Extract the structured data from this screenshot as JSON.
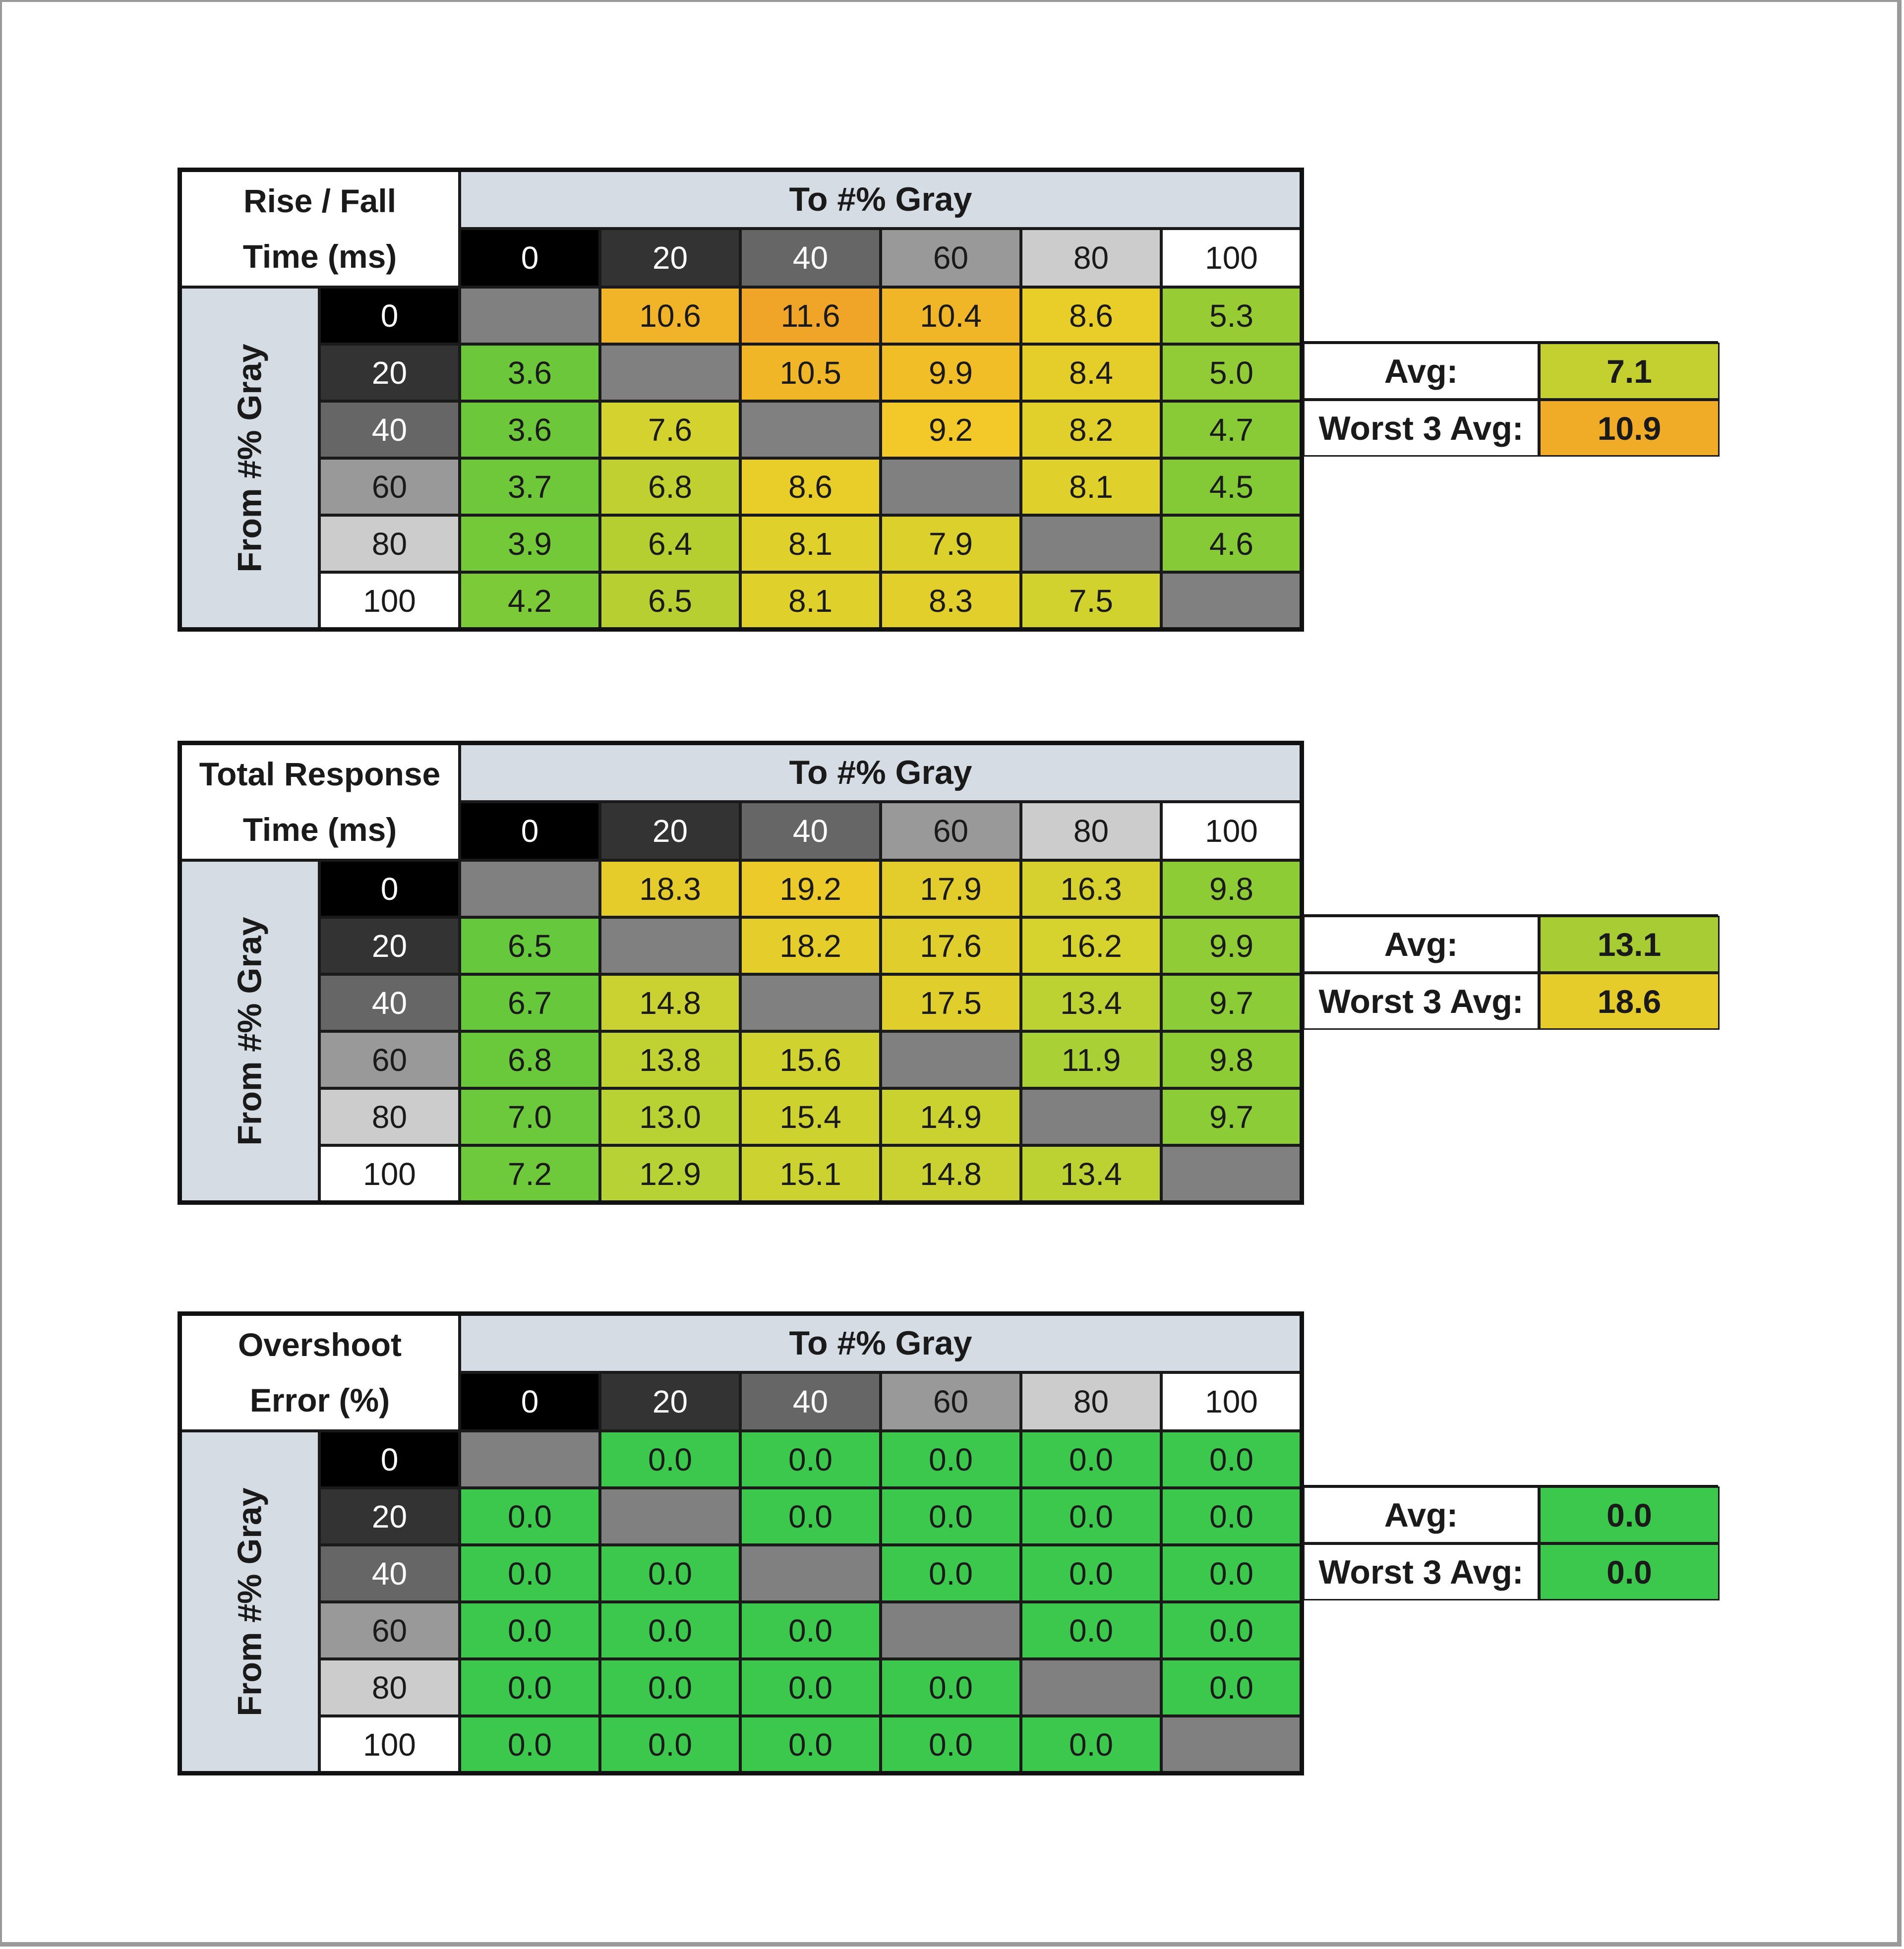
{
  "chart_data": [
    {
      "type": "heatmap",
      "title_lines": [
        "Rise / Fall",
        "Time (ms)"
      ],
      "column_header": "To #% Gray",
      "row_header": "From #% Gray",
      "columns": [
        "0",
        "20",
        "40",
        "60",
        "80",
        "100"
      ],
      "rows": [
        "0",
        "20",
        "40",
        "60",
        "80",
        "100"
      ],
      "values": [
        [
          null,
          10.6,
          11.6,
          10.4,
          8.6,
          5.3
        ],
        [
          3.6,
          null,
          10.5,
          9.9,
          8.4,
          5.0
        ],
        [
          3.6,
          7.6,
          null,
          9.2,
          8.2,
          4.7
        ],
        [
          3.7,
          6.8,
          8.6,
          null,
          8.1,
          4.5
        ],
        [
          3.9,
          6.4,
          8.1,
          7.9,
          null,
          4.6
        ],
        [
          4.2,
          6.5,
          8.1,
          8.3,
          7.5,
          null
        ]
      ],
      "display": [
        [
          "",
          "10.6",
          "11.6",
          "10.4",
          "8.6",
          "5.3"
        ],
        [
          "3.6",
          "",
          "10.5",
          "9.9",
          "8.4",
          "5.0"
        ],
        [
          "3.6",
          "7.6",
          "",
          "9.2",
          "8.2",
          "4.7"
        ],
        [
          "3.7",
          "6.8",
          "8.6",
          "",
          "8.1",
          "4.5"
        ],
        [
          "3.9",
          "6.4",
          "8.1",
          "7.9",
          "",
          "4.6"
        ],
        [
          "4.2",
          "6.5",
          "8.1",
          "8.3",
          "7.5",
          ""
        ]
      ],
      "color_scale": [
        [
          3.6,
          "#6cc83a"
        ],
        [
          7.5,
          "#d2d22e"
        ],
        [
          9.0,
          "#f2cc28"
        ],
        [
          11.6,
          "#f0a428"
        ]
      ],
      "summary": {
        "avg_label": "Avg:",
        "avg": "7.1",
        "avg_color": "#c4cf30",
        "worst_label": "Worst 3 Avg:",
        "worst": "10.9",
        "worst_color": "#f0ac26"
      }
    },
    {
      "type": "heatmap",
      "title_lines": [
        "Total Response",
        "Time (ms)"
      ],
      "column_header": "To #% Gray",
      "row_header": "From #% Gray",
      "columns": [
        "0",
        "20",
        "40",
        "60",
        "80",
        "100"
      ],
      "rows": [
        "0",
        "20",
        "40",
        "60",
        "80",
        "100"
      ],
      "values": [
        [
          null,
          18.3,
          19.2,
          17.9,
          16.3,
          9.8
        ],
        [
          6.5,
          null,
          18.2,
          17.6,
          16.2,
          9.9
        ],
        [
          6.7,
          14.8,
          null,
          17.5,
          13.4,
          9.7
        ],
        [
          6.8,
          13.8,
          15.6,
          null,
          11.9,
          9.8
        ],
        [
          7.0,
          13.0,
          15.4,
          14.9,
          null,
          9.7
        ],
        [
          7.2,
          12.9,
          15.1,
          14.8,
          13.4,
          null
        ]
      ],
      "display": [
        [
          "",
          "18.3",
          "19.2",
          "17.9",
          "16.3",
          "9.8"
        ],
        [
          "6.5",
          "",
          "18.2",
          "17.6",
          "16.2",
          "9.9"
        ],
        [
          "6.7",
          "14.8",
          "",
          "17.5",
          "13.4",
          "9.7"
        ],
        [
          "6.8",
          "13.8",
          "15.6",
          "",
          "11.9",
          "9.8"
        ],
        [
          "7.0",
          "13.0",
          "15.4",
          "14.9",
          "",
          "9.7"
        ],
        [
          "7.2",
          "12.9",
          "15.1",
          "14.8",
          "13.4",
          ""
        ]
      ],
      "color_scale": [
        [
          6.5,
          "#66c83c"
        ],
        [
          10,
          "#90cc36"
        ],
        [
          13.0,
          "#b8d234"
        ],
        [
          16.0,
          "#d4d22e"
        ],
        [
          19.2,
          "#ecca2a"
        ]
      ],
      "summary": {
        "avg_label": "Avg:",
        "avg": "13.1",
        "avg_color": "#a8cc34",
        "worst_label": "Worst 3 Avg:",
        "worst": "18.6",
        "worst_color": "#e6cc2a"
      }
    },
    {
      "type": "heatmap",
      "title_lines": [
        "Overshoot",
        "Error (%)"
      ],
      "column_header": "To #% Gray",
      "row_header": "From #% Gray",
      "columns": [
        "0",
        "20",
        "40",
        "60",
        "80",
        "100"
      ],
      "rows": [
        "0",
        "20",
        "40",
        "60",
        "80",
        "100"
      ],
      "values": [
        [
          null,
          0.0,
          0.0,
          0.0,
          0.0,
          0.0
        ],
        [
          0.0,
          null,
          0.0,
          0.0,
          0.0,
          0.0
        ],
        [
          0.0,
          0.0,
          null,
          0.0,
          0.0,
          0.0
        ],
        [
          0.0,
          0.0,
          0.0,
          null,
          0.0,
          0.0
        ],
        [
          0.0,
          0.0,
          0.0,
          0.0,
          null,
          0.0
        ],
        [
          0.0,
          0.0,
          0.0,
          0.0,
          0.0,
          null
        ]
      ],
      "display": [
        [
          "",
          "0.0",
          "0.0",
          "0.0",
          "0.0",
          "0.0"
        ],
        [
          "0.0",
          "",
          "0.0",
          "0.0",
          "0.0",
          "0.0"
        ],
        [
          "0.0",
          "0.0",
          "",
          "0.0",
          "0.0",
          "0.0"
        ],
        [
          "0.0",
          "0.0",
          "0.0",
          "",
          "0.0",
          "0.0"
        ],
        [
          "0.0",
          "0.0",
          "0.0",
          "0.0",
          "",
          "0.0"
        ],
        [
          "0.0",
          "0.0",
          "0.0",
          "0.0",
          "0.0",
          ""
        ]
      ],
      "color_scale": [
        [
          0,
          "#3cc84c"
        ]
      ],
      "summary": {
        "avg_label": "Avg:",
        "avg": "0.0",
        "avg_color": "#3cc84c",
        "worst_label": "Worst 3 Avg:",
        "worst": "0.0",
        "worst_color": "#3cc84c"
      }
    }
  ],
  "colors": {
    "diagonal": "#808080",
    "header_band": "#d6dce4",
    "gray_levels": {
      "0": "#000000",
      "20": "#333333",
      "40": "#666666",
      "60": "#999999",
      "80": "#cccccc",
      "100": "#ffffff"
    }
  }
}
